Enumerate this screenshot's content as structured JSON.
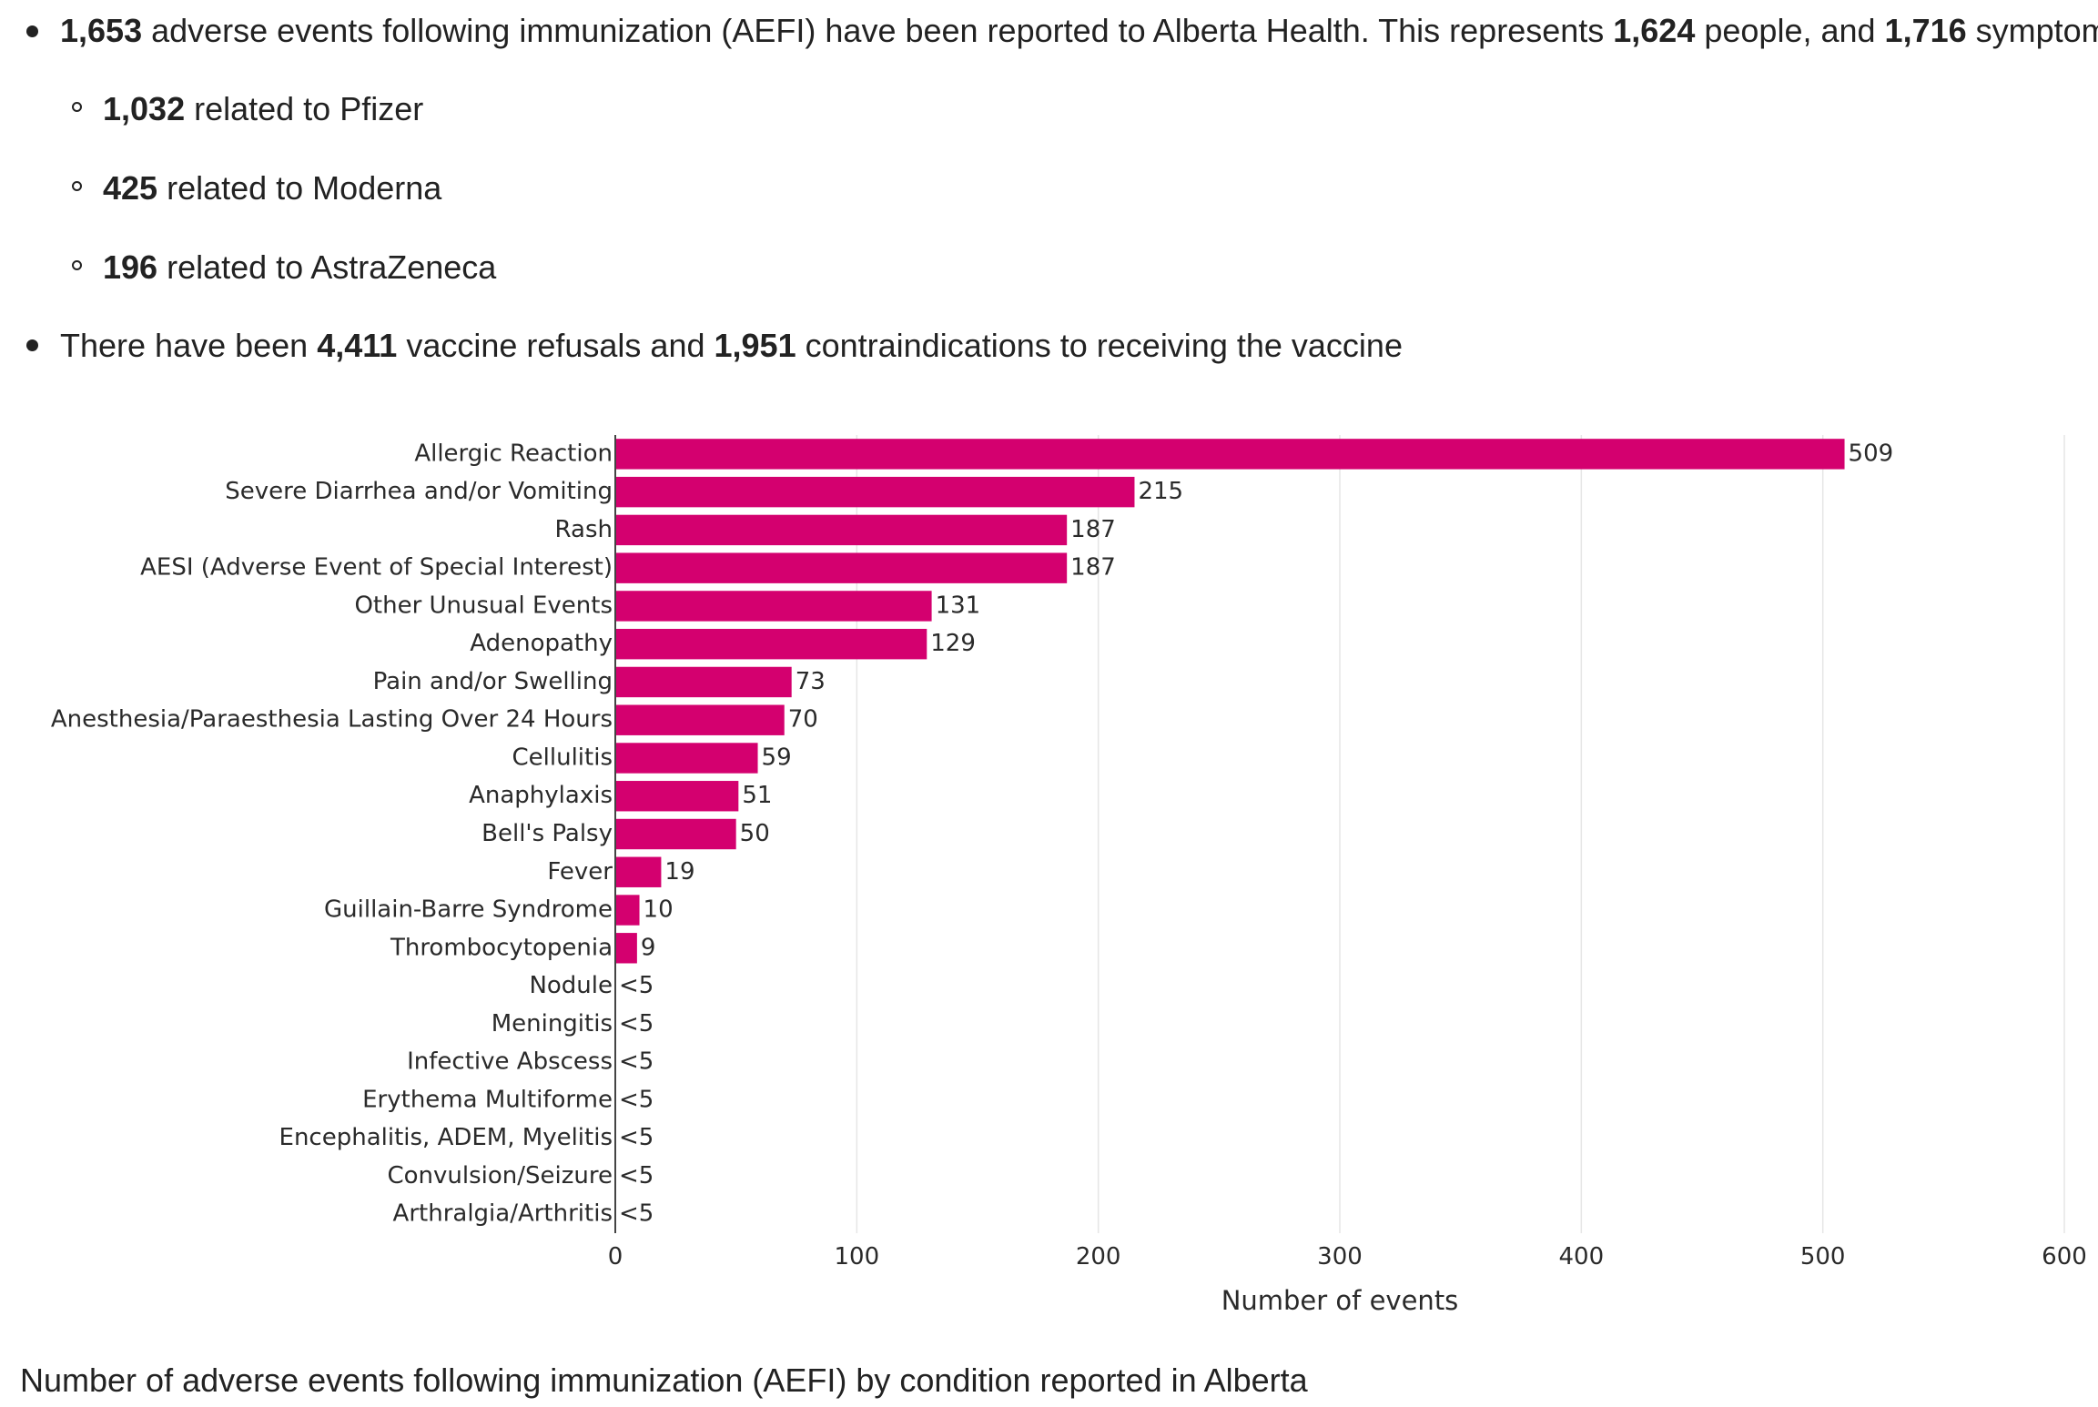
{
  "bullets": {
    "aefi": {
      "count": "1,653",
      "text1": " adverse events following immunization (AEFI) have been reported to Alberta Health. This represents ",
      "people": "1,624",
      "text2": " people, and ",
      "symptoms": "1,716",
      "text3": " symptoms."
    },
    "sub": [
      {
        "count": "1,032",
        "text": " related to Pfizer"
      },
      {
        "count": "425",
        "text": " related to Moderna"
      },
      {
        "count": "196",
        "text": " related to AstraZeneca"
      }
    ],
    "refusals": {
      "text1": "There have been ",
      "refusals": "4,411",
      "text2": " vaccine refusals and ",
      "contra": "1,951",
      "text3": " contraindications to receiving the vaccine"
    }
  },
  "caption": "Number of adverse events following immunization (AEFI) by condition reported in Alberta",
  "colors": {
    "bar": "#d4006f",
    "grid": "#e6e6e6",
    "axis": "#444444",
    "text": "#2a2a2a"
  },
  "chart_data": {
    "type": "bar",
    "orientation": "horizontal",
    "xlabel": "Number of events",
    "xlim": [
      0,
      600
    ],
    "xticks": [
      0,
      100,
      200,
      300,
      400,
      500,
      600
    ],
    "grid": true,
    "categories": [
      "Allergic Reaction",
      "Severe Diarrhea and/or Vomiting",
      "Rash",
      "AESI (Adverse Event of Special Interest)",
      "Other Unusual Events",
      "Adenopathy",
      "Pain and/or Swelling",
      "Anesthesia/Paraesthesia Lasting Over 24 Hours",
      "Cellulitis",
      "Anaphylaxis",
      "Bell's Palsy",
      "Fever",
      "Guillain-Barre Syndrome",
      "Thrombocytopenia",
      "Nodule",
      "Meningitis",
      "Infective Abscess",
      "Erythema Multiforme",
      "Encephalitis, ADEM, Myelitis",
      "Convulsion/Seizure",
      "Arthralgia/Arthritis"
    ],
    "values": [
      509,
      215,
      187,
      187,
      131,
      129,
      73,
      70,
      59,
      51,
      50,
      19,
      10,
      9,
      null,
      null,
      null,
      null,
      null,
      null,
      null
    ],
    "labels": [
      "509",
      "215",
      "187",
      "187",
      "131",
      "129",
      "73",
      "70",
      "59",
      "51",
      "50",
      "19",
      "10",
      "9",
      "<5",
      "<5",
      "<5",
      "<5",
      "<5",
      "<5",
      "<5"
    ]
  }
}
